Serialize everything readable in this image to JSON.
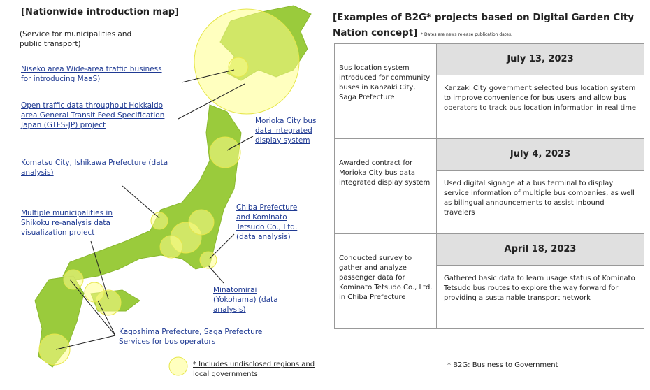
{
  "map": {
    "title": "[Nationwide introduction map]",
    "subtitle": "(Service for municipalities and public transport)",
    "labels": [
      "Niseko area Wide-area traffic business for introducing MaaS)",
      "Open traffic data throughout Hokkaido area General Transit Feed Specification Japan (GTFS-JP) project",
      "Morioka City bus data integrated display system",
      "Komatsu City, Ishikawa Prefecture (data analysis)",
      "Multiple municipalities in Shikoku re-analysis data visualization project",
      "Chiba Prefecture and Kominato Tetsudo Co., Ltd. (data analysis)",
      "Minatomirai (Yokohama) (data analysis)",
      "Kagoshima Prefecture, Saga Prefecture Services for bus operators"
    ],
    "legend": "* Includes undisclosed regions and local governments"
  },
  "projects": {
    "title": "[Examples of B2G* projects based on Digital Garden City Nation concept]",
    "note": "* Dates are news release publication dates.",
    "rows": [
      {
        "summary": "Bus location system introduced for community buses in Kanzaki City, Saga Prefecture",
        "date": "July 13, 2023",
        "detail": "Kanzaki City government selected bus location system to improve convenience for bus users and allow bus operators to track bus location information in real time"
      },
      {
        "summary": "Awarded contract for Morioka City bus data integrated display system",
        "date": "July 4, 2023",
        "detail": "Used digital signage at a bus terminal to display service information of multiple bus companies, as well as bilingual announcements to assist inbound travelers"
      },
      {
        "summary": "Conducted survey to gather and analyze passenger data for Kominato Tetsudo Co., Ltd. in Chiba Prefecture",
        "date": "April 18, 2023",
        "detail": "Gathered basic data to learn usage status of Kominato Tetsudo bus routes to explore the way forward for providing a sustainable transport network"
      }
    ],
    "footnote": "* B2G: Business to Government"
  }
}
